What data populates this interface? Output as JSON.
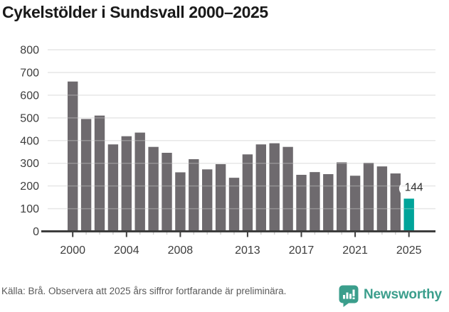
{
  "chart_data": {
    "type": "bar",
    "title": "Cykelstölder i Sundsvall 2000–2025",
    "x": [
      2000,
      2001,
      2002,
      2003,
      2004,
      2005,
      2006,
      2007,
      2008,
      2009,
      2010,
      2011,
      2012,
      2013,
      2014,
      2015,
      2016,
      2017,
      2018,
      2019,
      2020,
      2021,
      2022,
      2023,
      2024,
      2025
    ],
    "values": [
      660,
      495,
      510,
      383,
      419,
      435,
      372,
      346,
      260,
      318,
      273,
      296,
      236,
      339,
      383,
      388,
      372,
      249,
      261,
      252,
      304,
      245,
      302,
      286,
      255,
      144
    ],
    "highlight_year": 2025,
    "annotation": {
      "label": "144",
      "year": 2025
    },
    "ylim": [
      0,
      800
    ],
    "yticks": [
      0,
      100,
      200,
      300,
      400,
      500,
      600,
      700,
      800
    ],
    "xticks": [
      2000,
      2004,
      2008,
      2013,
      2017,
      2021,
      2025
    ],
    "grid": true,
    "legend": "none",
    "colors": {
      "bar": "#6e6a6e",
      "highlight": "#00a49a",
      "gridline": "#e4e4e4",
      "axis": "#3d3d3d",
      "tick_label": "#3d3d3d",
      "minor_tick": "#cccccc",
      "annotation_text": "#2e2e2e",
      "annotation_hook": "#ffffff"
    }
  },
  "footer": {
    "source": "Källa: Brå. Observera att 2025 års siffror fortfarande är preliminära.",
    "brand": "Newsworthy",
    "brand_color": "#3b9e8c",
    "logo_icon": "speech-bubble-bar-chart"
  }
}
